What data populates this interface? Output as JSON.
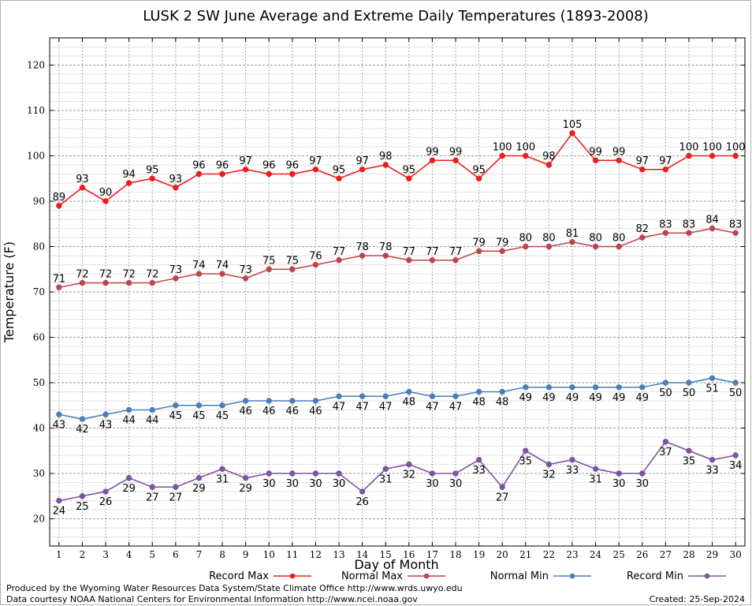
{
  "chart_data": {
    "type": "line",
    "title": "LUSK 2 SW June Average and Extreme Daily Temperatures (1893-2008)",
    "xlabel": "Day of Month",
    "ylabel": "Temperature (F)",
    "ylim": [
      14,
      126
    ],
    "xlim": [
      0.6,
      30.4
    ],
    "yticks": [
      20,
      30,
      40,
      50,
      60,
      70,
      80,
      90,
      100,
      110,
      120
    ],
    "x": [
      1,
      2,
      3,
      4,
      5,
      6,
      7,
      8,
      9,
      10,
      11,
      12,
      13,
      14,
      15,
      16,
      17,
      18,
      19,
      20,
      21,
      22,
      23,
      24,
      25,
      26,
      27,
      28,
      29,
      30
    ],
    "grid": true,
    "legend_position": "bottom",
    "series": [
      {
        "name": "Record Max",
        "color": "#ee1c1c",
        "label_position": "above",
        "values": [
          89,
          93,
          90,
          94,
          95,
          93,
          96,
          96,
          97,
          96,
          96,
          97,
          95,
          97,
          98,
          95,
          99,
          99,
          95,
          100,
          100,
          98,
          105,
          99,
          99,
          97,
          97,
          100,
          100,
          100
        ]
      },
      {
        "name": "Normal Max",
        "color": "#c0444c",
        "label_position": "above",
        "values": [
          71,
          72,
          72,
          72,
          72,
          73,
          74,
          74,
          73,
          75,
          75,
          76,
          77,
          78,
          78,
          77,
          77,
          77,
          79,
          79,
          80,
          80,
          81,
          80,
          80,
          82,
          83,
          83,
          84,
          83
        ]
      },
      {
        "name": "Normal Min",
        "color": "#4a7fb8",
        "label_position": "below",
        "values": [
          43,
          42,
          43,
          44,
          44,
          45,
          45,
          45,
          46,
          46,
          46,
          46,
          47,
          47,
          47,
          48,
          47,
          47,
          48,
          48,
          49,
          49,
          49,
          49,
          49,
          49,
          50,
          50,
          51,
          50
        ]
      },
      {
        "name": "Record Min",
        "color": "#7d559e",
        "label_position": "below",
        "values": [
          24,
          25,
          26,
          29,
          27,
          27,
          29,
          31,
          29,
          30,
          30,
          30,
          30,
          26,
          31,
          32,
          30,
          30,
          33,
          27,
          35,
          32,
          33,
          31,
          30,
          30,
          37,
          35,
          33,
          34
        ]
      }
    ]
  },
  "footer": {
    "produced_by": "Produced by the Wyoming Water Resources Data System/State Climate Office http://www.wrds.uwyo.edu",
    "courtesy": "Data courtesy NOAA National Centers for Environmental Information http://www.ncei.noaa.gov",
    "created": "Created:  25-Sep-2024"
  }
}
